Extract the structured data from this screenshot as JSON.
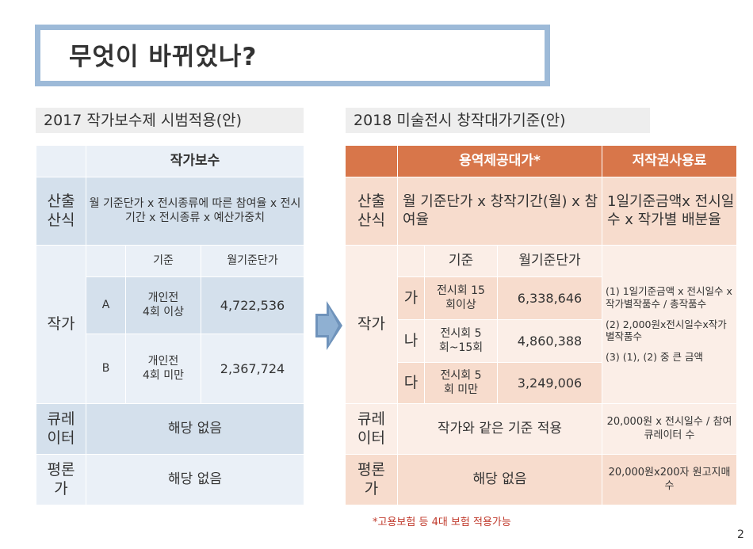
{
  "title": "무엇이 바뀌었나?",
  "left": {
    "heading": "2017 작가보수제 시범적용(안)",
    "col_header": "작가보수",
    "formula_label": "산출\n산식",
    "formula": "월 기준단가 x 전시종류에 따른 참여율 x 전시기간 x 전시종류 x 예산가중치",
    "sub_header_basis": "기준",
    "sub_header_price": "월기준단가",
    "artist_label": "작가",
    "rows": [
      {
        "grade": "A",
        "basis": "개인전\n4회 이상",
        "price": "4,722,536"
      },
      {
        "grade": "B",
        "basis": "개인전\n4회 미만",
        "price": "2,367,724"
      }
    ],
    "curator_label": "큐레\n이터",
    "curator_value": "해당 없음",
    "critic_label": "평론\n가",
    "critic_value": "해당 없음"
  },
  "right": {
    "heading": "2018 미술전시 창작대가기준(안)",
    "col_service": "용역제공대가*",
    "col_copyright": "저작권사용료",
    "formula_label": "산출\n산식",
    "formula_service": "월 기준단가 x 창작기간(월) x 참여율",
    "formula_copyright": "1일기준금액x 전시일수 x 작가별 배분율",
    "sub_header_basis": "기준",
    "sub_header_price": "월기준단가",
    "artist_label": "작가",
    "rows": [
      {
        "grade": "가",
        "basis": "전시회 15\n회이상",
        "price": "6,338,646"
      },
      {
        "grade": "나",
        "basis": "전시회 5\n회~15회",
        "price": "4,860,388"
      },
      {
        "grade": "다",
        "basis": "전시회 5\n회 미만",
        "price": "3,249,006"
      }
    ],
    "copyright_notes": [
      "(1)  1일기준금액 x 전시일수 x작가별작품수 / 총작품수",
      "(2)  2,000원x전시일수x작가별작품수",
      "(3)  (1), (2) 중 큰 금액"
    ],
    "curator_label": "큐레\n이터",
    "curator_service": "작가와 같은 기준 적용",
    "curator_copyright": "20,000원 x 전시일수 / 참여큐레이터 수",
    "critic_label": "평론\n가",
    "critic_service": "해당 없음",
    "critic_copyright": "20,000원x200자 원고지매수"
  },
  "footnote": "*고용보험 등 4대 보험 적용가능",
  "page_number": "2",
  "colors": {
    "orange": "#d8764a",
    "blue_frame": "#9dbad8",
    "arrow": "#6f93bb"
  }
}
